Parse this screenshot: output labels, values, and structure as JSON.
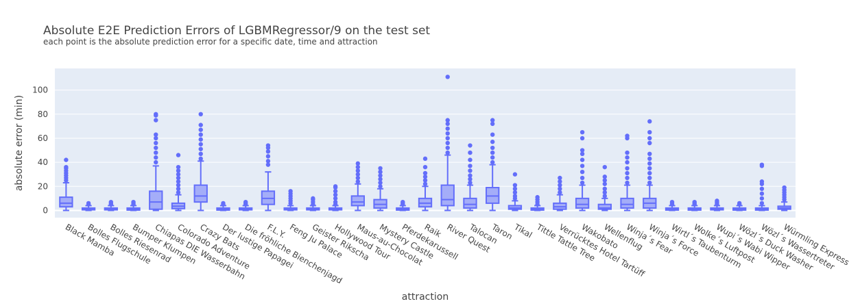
{
  "chart_data": {
    "type": "box",
    "title": "Absolute E2E Prediction Errors of LGBMRegressor/9 on the test set",
    "subtitle": "each point is the absolute prediction error for a specific date, time and attraction",
    "xlabel": "attraction",
    "ylabel": "absolute error (min)",
    "ylim": [
      -6,
      118
    ],
    "yticks": [
      0,
      20,
      40,
      60,
      80,
      100
    ],
    "grid": true,
    "colors": {
      "box": "#636efa",
      "fill": "rgba(99,110,250,0.5)",
      "plot_bg": "#e5ecf6"
    },
    "categories": [
      "Black Mamba",
      "Bolles Flugschule",
      "Bolles Riesenrad",
      "Bumper Klumpen",
      "Chiapas DIE Wasserbahn",
      "Colorado Adventure",
      "Crazy Bats",
      "Der lustige Papagei",
      "Die fröhliche Bienchenjagd",
      "F.L.Y.",
      "Feng Ju Palace",
      "Geister Rikscha",
      "Hollywood Tour",
      "Maus-au-Chocolat",
      "Mystery Castle",
      "Pferdekarussell",
      "Raik",
      "River Quest",
      "Talocan",
      "Taron",
      "Tikal",
      "Tittle Tattle Tree",
      "Verrücktes Hotel Tartüff",
      "Wakobato",
      "Wellenflug",
      "Winja´s Fear",
      "Winja´s Force",
      "Wirtl´s Taubenturm",
      "Wolke´s Luftpost",
      "Wupi´s Wabi Wipper",
      "Wözl´s Duck Washer",
      "Wözl´s Wassertreter",
      "Würmling Express"
    ],
    "boxes": [
      {
        "q1": 3,
        "median": 6,
        "q3": 11,
        "lower": 0,
        "upper": 23,
        "outliers": [
          25,
          27,
          29,
          31,
          33,
          35,
          36,
          42
        ]
      },
      {
        "q1": 0.5,
        "median": 1,
        "q3": 2,
        "lower": 0,
        "upper": 4,
        "outliers": [
          5,
          6
        ]
      },
      {
        "q1": 0.5,
        "median": 1,
        "q3": 2,
        "lower": 0,
        "upper": 4,
        "outliers": [
          5,
          6,
          7
        ]
      },
      {
        "q1": 0.3,
        "median": 1,
        "q3": 2,
        "lower": 0,
        "upper": 4,
        "outliers": [
          5,
          6,
          7
        ]
      },
      {
        "q1": 1,
        "median": 7,
        "q3": 16,
        "lower": 0,
        "upper": 37,
        "outliers": [
          40,
          44,
          48,
          52,
          56,
          60,
          63,
          75,
          79,
          80
        ]
      },
      {
        "q1": 1.5,
        "median": 3.5,
        "q3": 6,
        "lower": 0,
        "upper": 13,
        "outliers": [
          15,
          18,
          21,
          24,
          27,
          30,
          33,
          36,
          46
        ]
      },
      {
        "q1": 7,
        "median": 12,
        "q3": 21,
        "lower": 0,
        "upper": 41,
        "outliers": [
          43,
          47,
          51,
          55,
          59,
          63,
          67,
          71,
          80
        ]
      },
      {
        "q1": 0.3,
        "median": 1,
        "q3": 2,
        "lower": 0,
        "upper": 4,
        "outliers": [
          5,
          6
        ]
      },
      {
        "q1": 0.5,
        "median": 1,
        "q3": 2,
        "lower": 0,
        "upper": 4,
        "outliers": [
          5,
          6,
          7
        ]
      },
      {
        "q1": 5,
        "median": 10,
        "q3": 16,
        "lower": 0,
        "upper": 32,
        "outliers": [
          38,
          41,
          45,
          49,
          52,
          54
        ]
      },
      {
        "q1": 0.5,
        "median": 1,
        "q3": 2,
        "lower": 0,
        "upper": 4,
        "outliers": [
          6,
          8,
          10,
          12,
          14,
          16
        ]
      },
      {
        "q1": 0.5,
        "median": 1,
        "q3": 2,
        "lower": 0,
        "upper": 4,
        "outliers": [
          5,
          7,
          9,
          10
        ]
      },
      {
        "q1": 0.5,
        "median": 1,
        "q3": 2,
        "lower": 0,
        "upper": 4,
        "outliers": [
          5,
          7,
          10,
          13,
          16,
          19,
          20
        ]
      },
      {
        "q1": 4,
        "median": 7,
        "q3": 12,
        "lower": 0,
        "upper": 22,
        "outliers": [
          24,
          27,
          30,
          33,
          36,
          39
        ]
      },
      {
        "q1": 2,
        "median": 5,
        "q3": 9,
        "lower": 0,
        "upper": 18,
        "outliers": [
          20,
          23,
          26,
          29,
          32,
          35
        ]
      },
      {
        "q1": 0.3,
        "median": 1,
        "q3": 2,
        "lower": 0,
        "upper": 4,
        "outliers": [
          5,
          6,
          7
        ]
      },
      {
        "q1": 3,
        "median": 6,
        "q3": 10,
        "lower": 0,
        "upper": 20,
        "outliers": [
          22,
          25,
          28,
          31,
          36,
          43
        ]
      },
      {
        "q1": 4,
        "median": 9,
        "q3": 21,
        "lower": 0,
        "upper": 46,
        "outliers": [
          48,
          52,
          56,
          60,
          64,
          68,
          72,
          75,
          111
        ]
      },
      {
        "q1": 2,
        "median": 5,
        "q3": 10,
        "lower": 0,
        "upper": 21,
        "outliers": [
          23,
          26,
          29,
          33,
          37,
          42,
          48,
          54
        ]
      },
      {
        "q1": 6,
        "median": 12,
        "q3": 19,
        "lower": 0,
        "upper": 38,
        "outliers": [
          40,
          44,
          48,
          52,
          57,
          63,
          72,
          75
        ]
      },
      {
        "q1": 1,
        "median": 2,
        "q3": 4,
        "lower": 0,
        "upper": 8,
        "outliers": [
          10,
          12,
          15,
          18,
          21,
          30
        ]
      },
      {
        "q1": 0.3,
        "median": 1,
        "q3": 2,
        "lower": 0,
        "upper": 4,
        "outliers": [
          5,
          7,
          9,
          11
        ]
      },
      {
        "q1": 1,
        "median": 3,
        "q3": 6,
        "lower": 0,
        "upper": 13,
        "outliers": [
          15,
          18,
          21,
          24,
          27
        ]
      },
      {
        "q1": 2,
        "median": 5,
        "q3": 10,
        "lower": 0,
        "upper": 21,
        "outliers": [
          23,
          27,
          32,
          37,
          42,
          47,
          50,
          60,
          65
        ]
      },
      {
        "q1": 1,
        "median": 2,
        "q3": 5,
        "lower": 0,
        "upper": 10,
        "outliers": [
          12,
          15,
          18,
          22,
          25,
          28,
          36
        ]
      },
      {
        "q1": 2,
        "median": 5,
        "q3": 10,
        "lower": 0,
        "upper": 21,
        "outliers": [
          23,
          27,
          31,
          35,
          40,
          44,
          48,
          60,
          62
        ]
      },
      {
        "q1": 2,
        "median": 6,
        "q3": 10,
        "lower": 0,
        "upper": 21,
        "outliers": [
          23,
          27,
          31,
          35,
          39,
          43,
          47,
          56,
          60,
          65,
          74
        ]
      },
      {
        "q1": 0.3,
        "median": 1,
        "q3": 2,
        "lower": 0,
        "upper": 4,
        "outliers": [
          5,
          6,
          7
        ]
      },
      {
        "q1": 0.3,
        "median": 1,
        "q3": 2,
        "lower": 0,
        "upper": 4,
        "outliers": [
          5,
          6,
          7
        ]
      },
      {
        "q1": 0.5,
        "median": 1,
        "q3": 2,
        "lower": 0,
        "upper": 4,
        "outliers": [
          5,
          6,
          7,
          8
        ]
      },
      {
        "q1": 0.3,
        "median": 1,
        "q3": 2,
        "lower": 0,
        "upper": 4,
        "outliers": [
          5,
          6
        ]
      },
      {
        "q1": 0.3,
        "median": 1,
        "q3": 2,
        "lower": 0,
        "upper": 4,
        "outliers": [
          6,
          10,
          14,
          18,
          22,
          24,
          37,
          38
        ]
      },
      {
        "q1": 1,
        "median": 2,
        "q3": 3.5,
        "lower": 0,
        "upper": 7,
        "outliers": [
          9,
          11,
          13,
          15,
          17,
          19
        ]
      }
    ]
  }
}
